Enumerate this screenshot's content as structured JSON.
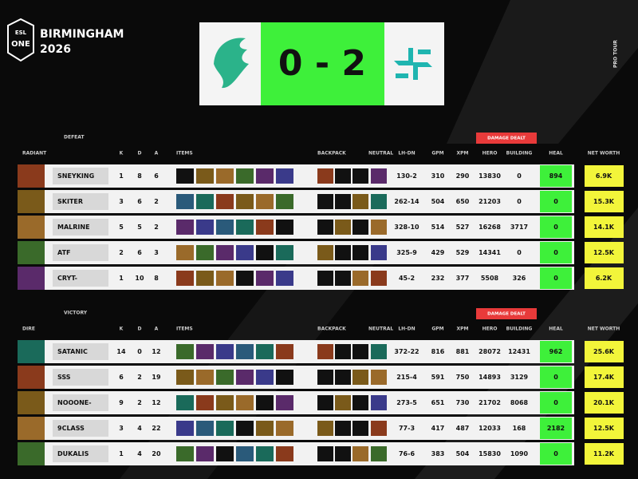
{
  "event": {
    "brand": "ESL",
    "name": "ONE",
    "city": "BIRMINGHAM",
    "year": "2026",
    "tour": "PRO TOUR"
  },
  "score": "0 - 2",
  "columns": {
    "k": "K",
    "d": "D",
    "a": "A",
    "items": "ITEMS",
    "backpack": "BACKPACK",
    "neutral": "NEUTRAL",
    "lh_dn": "LH-DN",
    "gpm": "GPM",
    "xpm": "XPM",
    "hero": "HERO",
    "building": "BUILDING",
    "heal": "HEAL",
    "net_worth": "NET WORTH",
    "damage_dealt": "DAMAGE DEALT"
  },
  "teams": [
    {
      "result": "DEFEAT",
      "side": "RADIANT",
      "players": [
        {
          "name": "SNEYKING",
          "k": 1,
          "d": 8,
          "a": 6,
          "lh_dn": "130-2",
          "gpm": 310,
          "xpm": 290,
          "hero": 13830,
          "building": 0,
          "heal": 894,
          "net_worth": "6.9K"
        },
        {
          "name": "SKITER",
          "k": 3,
          "d": 6,
          "a": 2,
          "lh_dn": "262-14",
          "gpm": 504,
          "xpm": 650,
          "hero": 21203,
          "building": 0,
          "heal": 0,
          "net_worth": "15.3K"
        },
        {
          "name": "MALRINE",
          "k": 5,
          "d": 5,
          "a": 2,
          "lh_dn": "328-10",
          "gpm": 514,
          "xpm": 527,
          "hero": 16268,
          "building": 3717,
          "heal": 0,
          "net_worth": "14.1K"
        },
        {
          "name": "ATF",
          "k": 2,
          "d": 6,
          "a": 3,
          "lh_dn": "325-9",
          "gpm": 429,
          "xpm": 529,
          "hero": 14341,
          "building": 0,
          "heal": 0,
          "net_worth": "12.5K"
        },
        {
          "name": "CRYT-",
          "k": 1,
          "d": 10,
          "a": 8,
          "lh_dn": "45-2",
          "gpm": 232,
          "xpm": 377,
          "hero": 5508,
          "building": 326,
          "heal": 0,
          "net_worth": "6.2K"
        }
      ]
    },
    {
      "result": "VICTORY",
      "side": "DIRE",
      "players": [
        {
          "name": "SATANIC",
          "k": 14,
          "d": 0,
          "a": 12,
          "lh_dn": "372-22",
          "gpm": 816,
          "xpm": 881,
          "hero": 28072,
          "building": 12431,
          "heal": 962,
          "net_worth": "25.6K"
        },
        {
          "name": "SSS",
          "k": 6,
          "d": 2,
          "a": 19,
          "lh_dn": "215-4",
          "gpm": 591,
          "xpm": 750,
          "hero": 14893,
          "building": 3129,
          "heal": 0,
          "net_worth": "17.4K"
        },
        {
          "name": "NOOONE-",
          "k": 9,
          "d": 2,
          "a": 12,
          "lh_dn": "273-5",
          "gpm": 651,
          "xpm": 730,
          "hero": 21702,
          "building": 8068,
          "heal": 0,
          "net_worth": "20.1K"
        },
        {
          "name": "9CLASS",
          "k": 3,
          "d": 4,
          "a": 22,
          "lh_dn": "77-3",
          "gpm": 417,
          "xpm": 487,
          "hero": 12033,
          "building": 168,
          "heal": 2182,
          "net_worth": "12.5K"
        },
        {
          "name": "DUKALIS",
          "k": 1,
          "d": 4,
          "a": 20,
          "lh_dn": "76-6",
          "gpm": 383,
          "xpm": 504,
          "hero": 15830,
          "building": 1090,
          "heal": 0,
          "net_worth": "11.2K"
        }
      ]
    }
  ]
}
